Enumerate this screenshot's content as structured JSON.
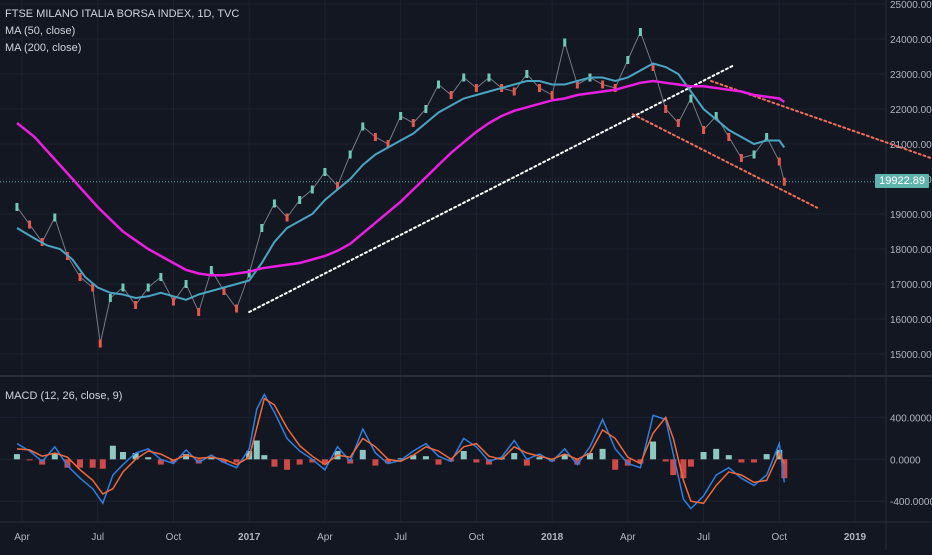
{
  "chart_data": [
    {
      "type": "line",
      "title": "FTSE MILANO ITALIA BORSA INDEX, 1D, TVC",
      "legend": [
        "MA (50, close)",
        "MA (200, close)"
      ],
      "ylim": [
        14500,
        25000
      ],
      "y_ticks": [
        15000,
        16000,
        17000,
        18000,
        19000,
        20000,
        21000,
        22000,
        23000,
        24000,
        25000
      ],
      "y_tick_labels": [
        "15000.00",
        "16000.00",
        "17000.00",
        "18000.00",
        "19000.00",
        "20000.00",
        "21000.00",
        "22000.00",
        "23000.00",
        "24000.00",
        "25000.00"
      ],
      "last_price": "19922.89",
      "x_labels": [
        "Apr",
        "Jul",
        "Oct",
        "2017",
        "Apr",
        "Jul",
        "Oct",
        "2018",
        "Apr",
        "Jul",
        "Oct",
        "2019"
      ],
      "x_label_bold": [
        false,
        false,
        false,
        true,
        false,
        false,
        false,
        true,
        false,
        false,
        false,
        true
      ],
      "x_label_months": [
        0,
        3,
        6,
        9,
        12,
        15,
        18,
        21,
        24,
        27,
        30,
        33
      ],
      "x_start_month": 0,
      "x_end_month": 35,
      "series": [
        {
          "name": "Price",
          "color": "#d1d4dc",
          "x": [
            -0.2,
            0.3,
            0.8,
            1.3,
            1.8,
            2.3,
            2.8,
            3.1,
            3.5,
            4.0,
            4.5,
            5.0,
            5.5,
            6.0,
            6.5,
            7.0,
            7.5,
            8.0,
            8.5,
            9.0,
            9.5,
            10.0,
            10.5,
            11.0,
            11.5,
            12.0,
            12.5,
            13.0,
            13.5,
            14.0,
            14.5,
            15.0,
            15.5,
            16.0,
            16.5,
            17.0,
            17.5,
            18.0,
            18.5,
            19.0,
            19.5,
            20.0,
            20.5,
            21.0,
            21.5,
            22.0,
            22.5,
            23.0,
            23.5,
            24.0,
            24.5,
            25.0,
            25.5,
            26.0,
            26.5,
            27.0,
            27.5,
            28.0,
            28.5,
            29.0,
            29.5,
            30.0,
            30.2
          ],
          "values": [
            19200,
            18700,
            18200,
            18900,
            17800,
            17200,
            16900,
            15300,
            16600,
            16900,
            16400,
            16900,
            17200,
            16500,
            17000,
            16200,
            17400,
            16800,
            16300,
            17300,
            18600,
            19300,
            18900,
            19400,
            19700,
            20200,
            19800,
            20700,
            21500,
            21200,
            21000,
            21800,
            21600,
            22000,
            22700,
            22400,
            22900,
            22600,
            22900,
            22600,
            22500,
            23000,
            22600,
            22400,
            23900,
            22700,
            22900,
            22700,
            22600,
            23400,
            24200,
            23200,
            22000,
            21600,
            22300,
            21400,
            21800,
            21200,
            20600,
            20700,
            21200,
            20500,
            19923
          ]
        },
        {
          "name": "MA (50, close)",
          "color": "#4aa4c2",
          "x": [
            -0.2,
            0.5,
            1.0,
            1.5,
            2.0,
            2.5,
            3.0,
            3.5,
            4.0,
            4.5,
            5.0,
            5.5,
            6.0,
            6.5,
            7.0,
            7.5,
            8.0,
            8.5,
            9.0,
            9.5,
            10.0,
            10.5,
            11.0,
            11.5,
            12.0,
            12.5,
            13.0,
            13.5,
            14.0,
            14.5,
            15.0,
            15.5,
            16.0,
            16.5,
            17.0,
            17.5,
            18.0,
            18.5,
            19.0,
            19.5,
            20.0,
            20.5,
            21.0,
            21.5,
            22.0,
            22.5,
            23.0,
            23.5,
            24.0,
            24.5,
            25.0,
            25.5,
            26.0,
            26.5,
            27.0,
            27.5,
            28.0,
            28.5,
            29.0,
            29.5,
            30.0,
            30.2
          ],
          "values": [
            18600,
            18300,
            18100,
            18000,
            17700,
            17200,
            16900,
            16750,
            16700,
            16600,
            16650,
            16750,
            16650,
            16550,
            16700,
            16800,
            16900,
            17000,
            17100,
            17600,
            18200,
            18600,
            18800,
            19000,
            19400,
            19700,
            20000,
            20400,
            20700,
            20900,
            21100,
            21300,
            21600,
            21900,
            22100,
            22300,
            22400,
            22500,
            22600,
            22700,
            22800,
            22800,
            22700,
            22700,
            22800,
            22900,
            22900,
            22800,
            22900,
            23100,
            23300,
            23200,
            23000,
            22500,
            22000,
            21700,
            21400,
            21200,
            21000,
            21100,
            21100,
            20900
          ]
        },
        {
          "name": "MA (200, close)",
          "color": "#e91ee0",
          "x": [
            -0.2,
            0.5,
            1.0,
            1.5,
            2.0,
            2.5,
            3.0,
            3.5,
            4.0,
            4.5,
            5.0,
            5.5,
            6.0,
            6.5,
            7.0,
            7.5,
            8.0,
            8.5,
            9.0,
            9.5,
            10.0,
            10.5,
            11.0,
            11.5,
            12.0,
            12.5,
            13.0,
            13.5,
            14.0,
            14.5,
            15.0,
            15.5,
            16.0,
            16.5,
            17.0,
            17.5,
            18.0,
            18.5,
            19.0,
            19.5,
            20.0,
            20.5,
            21.0,
            21.5,
            22.0,
            22.5,
            23.0,
            23.5,
            24.0,
            24.5,
            25.0,
            25.5,
            26.0,
            26.5,
            27.0,
            27.5,
            28.0,
            28.5,
            29.0,
            29.5,
            30.0,
            30.2
          ],
          "values": [
            21600,
            21200,
            20800,
            20400,
            20000,
            19600,
            19200,
            18850,
            18500,
            18250,
            18000,
            17800,
            17600,
            17400,
            17300,
            17250,
            17250,
            17300,
            17350,
            17450,
            17500,
            17550,
            17600,
            17700,
            17800,
            17950,
            18150,
            18450,
            18750,
            19050,
            19350,
            19700,
            20050,
            20400,
            20750,
            21050,
            21350,
            21600,
            21800,
            21950,
            22050,
            22150,
            22250,
            22300,
            22400,
            22450,
            22500,
            22550,
            22650,
            22750,
            22800,
            22750,
            22700,
            22650,
            22650,
            22600,
            22550,
            22500,
            22400,
            22350,
            22300,
            22200
          ]
        }
      ],
      "trendlines": [
        {
          "name": "support-trendline",
          "color": "#ffffff",
          "x": [
            9.0,
            28.2
          ],
          "values": [
            16200,
            23250
          ]
        },
        {
          "name": "channel-upper-line",
          "color": "#f06d5a",
          "x": [
            27.3,
            36.0
          ],
          "values": [
            22800,
            20600
          ]
        },
        {
          "name": "channel-lower-line",
          "color": "#f06d5a",
          "x": [
            24.2,
            31.5
          ],
          "values": [
            21850,
            19180
          ]
        }
      ]
    },
    {
      "type": "line",
      "title": "MACD (12, 26, close, 9)",
      "ylim": [
        -560,
        700
      ],
      "y_ticks": [
        400,
        0,
        -400
      ],
      "y_tick_labels": [
        "400.0000",
        "0.0000",
        "-400.0000"
      ],
      "x_labels": [
        "Apr",
        "Jul",
        "Oct",
        "2017",
        "Apr",
        "Jul",
        "Oct",
        "2018",
        "Apr",
        "Jul",
        "Oct",
        "2019"
      ],
      "x_label_months": [
        0,
        3,
        6,
        9,
        12,
        15,
        18,
        21,
        24,
        27,
        30,
        33
      ],
      "x_start_month": 0,
      "x_end_month": 35,
      "series": [
        {
          "name": "MACD",
          "color": "#2f7fe0",
          "x": [
            -0.2,
            0.3,
            0.8,
            1.3,
            1.8,
            2.3,
            2.8,
            3.2,
            3.6,
            4.0,
            4.5,
            5.0,
            5.5,
            6.0,
            6.5,
            7.0,
            7.5,
            8.0,
            8.5,
            9.0,
            9.3,
            9.6,
            10.0,
            10.5,
            11.0,
            11.5,
            12.0,
            12.5,
            13.0,
            13.5,
            14.0,
            14.5,
            15.0,
            15.5,
            16.0,
            16.5,
            17.0,
            17.5,
            18.0,
            18.5,
            19.0,
            19.5,
            20.0,
            20.5,
            21.0,
            21.5,
            22.0,
            22.5,
            23.0,
            23.5,
            24.0,
            24.5,
            25.0,
            25.5,
            25.8,
            26.2,
            26.5,
            27.0,
            27.5,
            28.0,
            28.5,
            29.0,
            29.5,
            30.0,
            30.2
          ],
          "values": [
            150,
            80,
            -20,
            120,
            -60,
            -180,
            -280,
            -420,
            -150,
            -50,
            60,
            100,
            0,
            -40,
            90,
            -30,
            40,
            -30,
            -80,
            100,
            480,
            620,
            450,
            200,
            80,
            0,
            -100,
            120,
            -20,
            290,
            60,
            -40,
            -10,
            80,
            150,
            30,
            -20,
            200,
            120,
            -20,
            20,
            180,
            0,
            50,
            -20,
            100,
            -50,
            120,
            380,
            100,
            -40,
            -80,
            420,
            380,
            50,
            -380,
            -470,
            -350,
            -150,
            -80,
            -180,
            -250,
            -150,
            150,
            -220
          ]
        },
        {
          "name": "Signal",
          "color": "#f0693a",
          "x": [
            -0.2,
            0.3,
            0.8,
            1.3,
            1.8,
            2.3,
            2.8,
            3.2,
            3.6,
            4.0,
            4.5,
            5.0,
            5.5,
            6.0,
            6.5,
            7.0,
            7.5,
            8.0,
            8.5,
            9.0,
            9.3,
            9.6,
            10.0,
            10.5,
            11.0,
            11.5,
            12.0,
            12.5,
            13.0,
            13.5,
            14.0,
            14.5,
            15.0,
            15.5,
            16.0,
            16.5,
            17.0,
            17.5,
            18.0,
            18.5,
            19.0,
            19.5,
            20.0,
            20.5,
            21.0,
            21.5,
            22.0,
            22.5,
            23.0,
            23.5,
            24.0,
            24.5,
            25.0,
            25.5,
            25.8,
            26.2,
            26.5,
            27.0,
            27.5,
            28.0,
            28.5,
            29.0,
            29.5,
            30.0,
            30.2
          ],
          "values": [
            100,
            90,
            30,
            60,
            20,
            -100,
            -200,
            -330,
            -280,
            -120,
            0,
            80,
            50,
            -10,
            40,
            10,
            20,
            0,
            -50,
            20,
            300,
            580,
            520,
            300,
            130,
            30,
            -50,
            40,
            20,
            200,
            120,
            0,
            -20,
            40,
            120,
            80,
            0,
            120,
            150,
            30,
            0,
            120,
            60,
            30,
            0,
            50,
            0,
            60,
            280,
            200,
            20,
            -40,
            250,
            400,
            200,
            -200,
            -400,
            -420,
            -250,
            -120,
            -150,
            -220,
            -200,
            60,
            -40
          ]
        }
      ]
    }
  ]
}
